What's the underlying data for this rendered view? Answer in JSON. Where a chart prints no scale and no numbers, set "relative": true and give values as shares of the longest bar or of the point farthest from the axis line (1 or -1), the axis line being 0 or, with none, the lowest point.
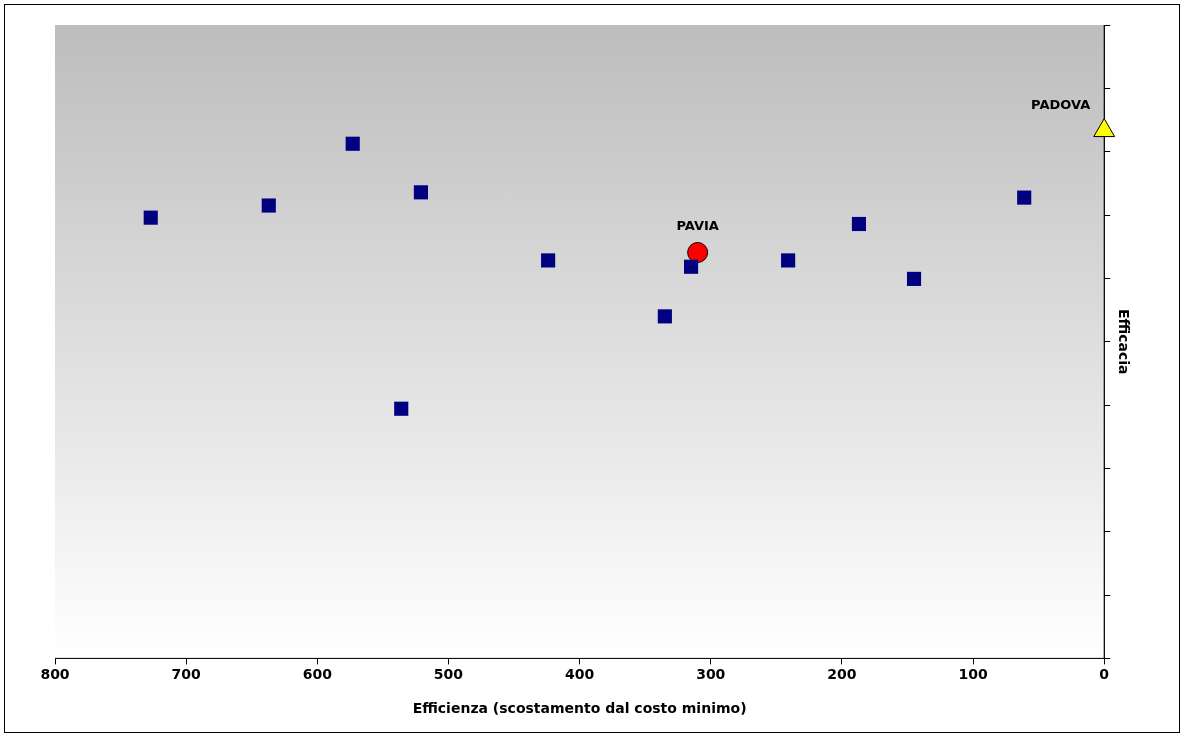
{
  "chart_data": {
    "type": "scatter",
    "xlabel": "Efficienza (scostamento dal costo minimo)",
    "ylabel": "Efficacia",
    "xlim": [
      800,
      0
    ],
    "xticks": [
      800,
      700,
      600,
      500,
      400,
      300,
      200,
      100,
      0
    ],
    "relative": true,
    "tick_labels": "x",
    "legend": false,
    "series": [
      {
        "color": "#000080",
        "marker": "square",
        "x": [
          727,
          637,
          573,
          521,
          424,
          536,
          335,
          315,
          241,
          187,
          145,
          61
        ],
        "values": [
          0.835,
          0.858,
          0.975,
          0.883,
          0.754,
          0.473,
          0.648,
          0.742,
          0.754,
          0.823,
          0.719,
          0.873
        ]
      },
      {
        "name": "PAVIA",
        "color": "#ff0000",
        "marker": "circle",
        "x": [
          310
        ],
        "values": [
          0.769
        ]
      },
      {
        "name": "PADOVA",
        "color": "#ffff00",
        "marker": "triangle",
        "x": [
          0
        ],
        "values": [
          1.0
        ]
      }
    ]
  }
}
